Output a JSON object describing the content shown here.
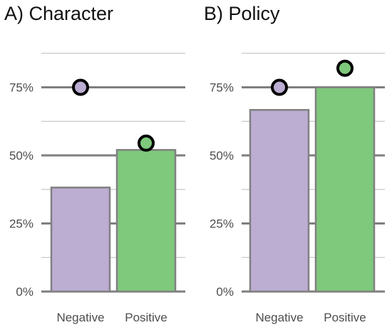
{
  "colors": {
    "negative": "#bcadd3",
    "positive": "#7ec97c",
    "bar_stroke": "#808080",
    "marker_stroke": "#000000",
    "grid_major": "#7f7f7f",
    "grid_minor": "#c8c8c8"
  },
  "chart_data": [
    {
      "type": "bar",
      "title": "A) Character",
      "categories": [
        "Negative",
        "Positive"
      ],
      "values": [
        38.2,
        52.0
      ],
      "markers": [
        75.0,
        54.5
      ],
      "ylim": [
        0,
        100
      ],
      "yticks": [
        0,
        25,
        50,
        75
      ],
      "ytick_labels": [
        "0%",
        "25%",
        "50%",
        "75%"
      ],
      "grid": true
    },
    {
      "type": "bar",
      "title": "B) Policy",
      "categories": [
        "Negative",
        "Positive"
      ],
      "values": [
        66.7,
        75.0
      ],
      "markers": [
        75.0,
        82.0
      ],
      "ylim": [
        0,
        100
      ],
      "yticks": [
        0,
        25,
        50,
        75
      ],
      "ytick_labels": [
        "0%",
        "25%",
        "50%",
        "75%"
      ],
      "grid": true
    }
  ]
}
